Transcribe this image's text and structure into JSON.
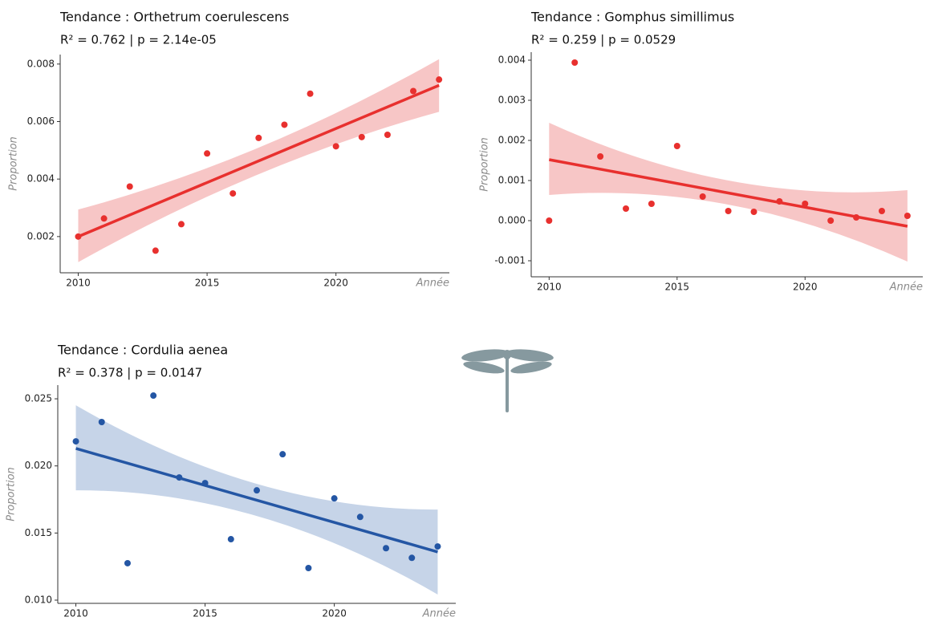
{
  "chart_data": [
    {
      "type": "scatter",
      "title": "Tendance : Orthetrum coerulescens",
      "subtitle": "R² = 0.762  |  p = 2.14e-05",
      "xlabel": "Année",
      "ylabel": "Proportion",
      "color": "#e8302e",
      "band_color": "#f7c6c6",
      "x": [
        2010,
        2011,
        2012,
        2013,
        2014,
        2015,
        2016,
        2017,
        2018,
        2019,
        2020,
        2021,
        2022,
        2023,
        2024
      ],
      "values": [
        0.002,
        0.00263,
        0.00374,
        0.00151,
        0.00243,
        0.00489,
        0.0035,
        0.00543,
        0.00589,
        0.00697,
        0.00514,
        0.00546,
        0.00554,
        0.00706,
        0.00746
      ],
      "fit": {
        "x": [
          2010,
          2024
        ],
        "values": [
          0.002,
          0.00726
        ]
      },
      "ci": {
        "x": [
          2010,
          2017,
          2024
        ],
        "lower": [
          0.00111,
          0.00417,
          0.00634
        ],
        "upper": [
          0.00294,
          0.00509,
          0.00817
        ]
      },
      "xlim": [
        2009.3,
        2024.4
      ],
      "ylim": [
        0.00074,
        0.00833
      ],
      "xticks": [
        2010,
        2015,
        2020
      ],
      "yticks": [
        0.002,
        0.004,
        0.006,
        0.008
      ]
    },
    {
      "type": "scatter",
      "title": "Tendance : Gomphus simillimus",
      "subtitle": "R² = 0.259  |  p = 0.0529",
      "xlabel": "Année",
      "ylabel": "Proportion",
      "color": "#e8302e",
      "band_color": "#f7c6c6",
      "x": [
        2010,
        2011,
        2012,
        2013,
        2014,
        2015,
        2016,
        2017,
        2018,
        2019,
        2020,
        2021,
        2022,
        2023,
        2024
      ],
      "values": [
        0.0,
        0.00394,
        0.0016,
        0.0003,
        0.00042,
        0.00186,
        0.0006,
        0.00024,
        0.00022,
        0.00048,
        0.00042,
        0.0,
        8e-05,
        0.00024,
        0.00012
      ],
      "fit": {
        "x": [
          2010,
          2024
        ],
        "values": [
          0.00152,
          -0.00014
        ]
      },
      "ci": {
        "x": [
          2010,
          2017,
          2024
        ],
        "lower": [
          0.00064,
          0.0004,
          -0.00102
        ],
        "upper": [
          0.00244,
          0.001,
          0.00076
        ]
      },
      "xlim": [
        2009.3,
        2024.6
      ],
      "ylim": [
        -0.0014,
        0.0042
      ],
      "xticks": [
        2010,
        2015,
        2020
      ],
      "yticks": [
        -0.001,
        {
          "value": 0,
          "label": "0.000"
        },
        0.001,
        0.002,
        0.003,
        0.004
      ]
    },
    {
      "type": "scatter",
      "title": "Tendance : Cordulia aenea",
      "subtitle": "R² = 0.378  |  p = 0.0147",
      "xlabel": "Année",
      "ylabel": "Proportion",
      "color": "#2456a4",
      "band_color": "#c6d4e8",
      "x": [
        2010,
        2011,
        2012,
        2013,
        2014,
        2015,
        2016,
        2017,
        2018,
        2019,
        2020,
        2021,
        2022,
        2023,
        2024
      ],
      "values": [
        0.02183,
        0.02327,
        0.01275,
        0.02524,
        0.01914,
        0.01872,
        0.01454,
        0.01818,
        0.02087,
        0.01239,
        0.01758,
        0.0162,
        0.01387,
        0.01315,
        0.014
      ],
      "fit": {
        "x": [
          2010,
          2024
        ],
        "values": [
          0.0213,
          0.01359
        ]
      },
      "ci": {
        "x": [
          2010,
          2017,
          2024
        ],
        "lower": [
          0.01818,
          0.01627,
          0.01042
        ],
        "upper": [
          0.02452,
          0.01866,
          0.01675
        ]
      },
      "xlim": [
        2009.3,
        2024.7
      ],
      "ylim": [
        0.00976,
        0.02602
      ],
      "xticks": [
        2010,
        2015,
        2020
      ],
      "yticks": [
        {
          "value": 0.01,
          "label": "0.010"
        },
        0.015,
        {
          "value": 0.02,
          "label": "0.020"
        },
        0.025
      ]
    }
  ]
}
